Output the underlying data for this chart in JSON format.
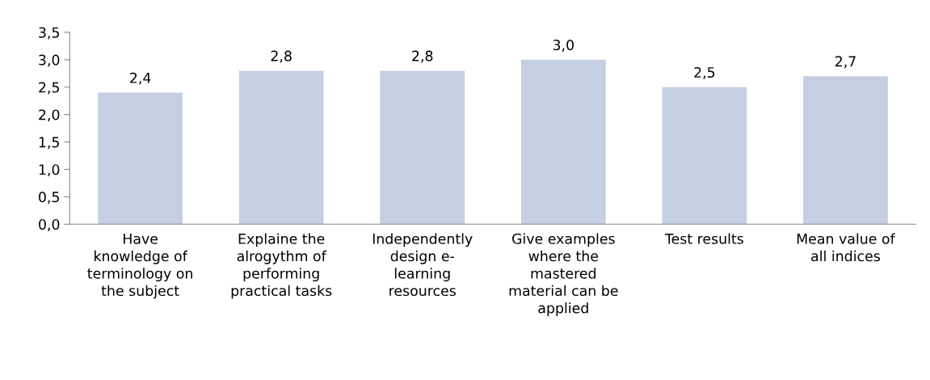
{
  "chart_data": {
    "type": "bar",
    "categories": [
      "Have\nknowledge of\nterminology on\nthe subject",
      "Explaine the\nalrogythm of\nperforming\npractical tasks",
      "Independently\ndesign e-\nlearning\nresources",
      "Give examples\nwhere the\nmastered\nmaterial can be\napplied",
      "Test results",
      "Mean value of\nall indices"
    ],
    "values": [
      2.4,
      2.8,
      2.8,
      3.0,
      2.5,
      2.7
    ],
    "value_labels": [
      "2,4",
      "2,8",
      "2,8",
      "3,0",
      "2,5",
      "2,7"
    ],
    "color": "#c5cfe3",
    "ylim": [
      0,
      3.5
    ],
    "yticks": [
      {
        "value": 0,
        "label": "0,0"
      },
      {
        "value": 0.5,
        "label": "0,5"
      },
      {
        "value": 1.0,
        "label": "1,0"
      },
      {
        "value": 1.5,
        "label": "1,5"
      },
      {
        "value": 2.0,
        "label": "2,0"
      },
      {
        "value": 2.5,
        "label": "2,5"
      },
      {
        "value": 3.0,
        "label": "3,0"
      },
      {
        "value": 3.5,
        "label": "3,5"
      }
    ],
    "grid": false
  }
}
